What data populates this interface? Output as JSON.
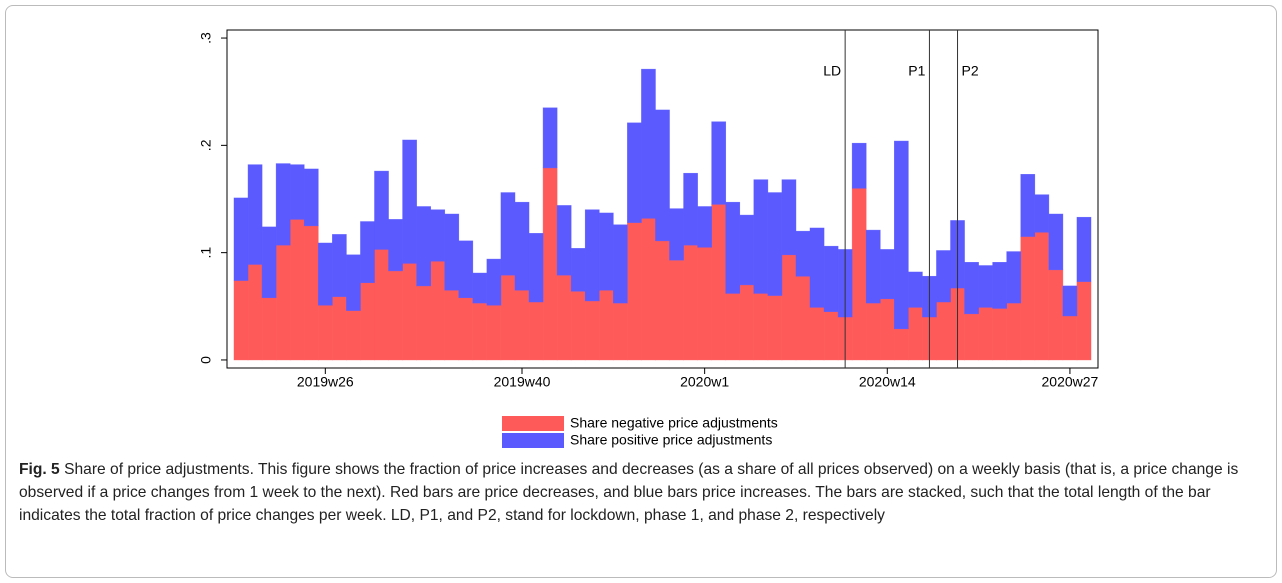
{
  "chart_data": {
    "type": "stacked_bar",
    "categories": [
      null,
      null,
      null,
      null,
      null,
      null,
      "2019w26",
      null,
      null,
      null,
      null,
      null,
      null,
      null,
      null,
      null,
      null,
      null,
      null,
      null,
      "2019w40",
      null,
      null,
      null,
      null,
      null,
      null,
      null,
      null,
      null,
      null,
      null,
      null,
      "2020w1",
      null,
      null,
      null,
      null,
      null,
      null,
      null,
      null,
      null,
      null,
      null,
      null,
      "2020w14",
      null,
      null,
      null,
      null,
      null,
      null,
      null,
      null,
      null,
      null,
      null,
      null,
      "2020w27",
      null
    ],
    "series": [
      {
        "name": "Share negative price adjustments",
        "color": "#ff5a5a",
        "values": [
          0.074,
          0.089,
          0.058,
          0.107,
          0.131,
          0.125,
          0.051,
          0.059,
          0.046,
          0.072,
          0.103,
          0.083,
          0.09,
          0.069,
          0.092,
          0.065,
          0.058,
          0.053,
          0.051,
          0.079,
          0.065,
          0.054,
          0.179,
          0.079,
          0.064,
          0.055,
          0.065,
          0.053,
          0.128,
          0.132,
          0.111,
          0.093,
          0.107,
          0.105,
          0.145,
          0.062,
          0.07,
          0.062,
          0.06,
          0.098,
          0.078,
          0.049,
          0.045,
          0.04,
          0.16,
          0.053,
          0.057,
          0.029,
          0.049,
          0.04,
          0.054,
          0.067,
          0.043,
          0.049,
          0.048,
          0.053,
          0.115,
          0.119,
          0.084,
          0.041,
          0.073
        ]
      },
      {
        "name": "Share positive price adjustments",
        "color": "#5a5aff",
        "values": [
          0.077,
          0.093,
          0.066,
          0.076,
          0.051,
          0.053,
          0.058,
          0.058,
          0.052,
          0.057,
          0.073,
          0.048,
          0.115,
          0.074,
          0.048,
          0.071,
          0.053,
          0.028,
          0.043,
          0.077,
          0.082,
          0.064,
          0.056,
          0.065,
          0.04,
          0.085,
          0.072,
          0.073,
          0.093,
          0.139,
          0.122,
          0.048,
          0.067,
          0.038,
          0.077,
          0.085,
          0.065,
          0.106,
          0.096,
          0.07,
          0.042,
          0.074,
          0.061,
          0.063,
          0.042,
          0.068,
          0.046,
          0.175,
          0.033,
          0.038,
          0.048,
          0.063,
          0.048,
          0.039,
          0.043,
          0.048,
          0.058,
          0.035,
          0.052,
          0.028,
          0.06
        ]
      }
    ],
    "ylim": [
      -0.0075,
      0.3075
    ],
    "yticks": [
      0,
      {
        "value": 0.1,
        "label": ".1"
      },
      {
        "value": 0.2,
        "label": ".2"
      },
      {
        "value": 0.3,
        "label": ".3"
      }
    ],
    "annotations": [
      {
        "text": "LD",
        "x": 43.5
      },
      {
        "text": "P1",
        "x": 49.5
      },
      {
        "text": "P2",
        "x": 51.5
      }
    ],
    "caption": {
      "label": "Fig. 5",
      "text": "Share of price adjustments. This figure shows the fraction of price increases and decreases (as a share of all prices observed) on a weekly basis (that is, a price change is observed if a price changes from 1 week to the next). Red bars are price decreases, and blue bars price increases. The bars are stacked, such that the total length of the bar indicates the total fraction of price changes per week. LD, P1, and P2, stand for lockdown, phase 1, and phase 2, respectively"
    }
  }
}
